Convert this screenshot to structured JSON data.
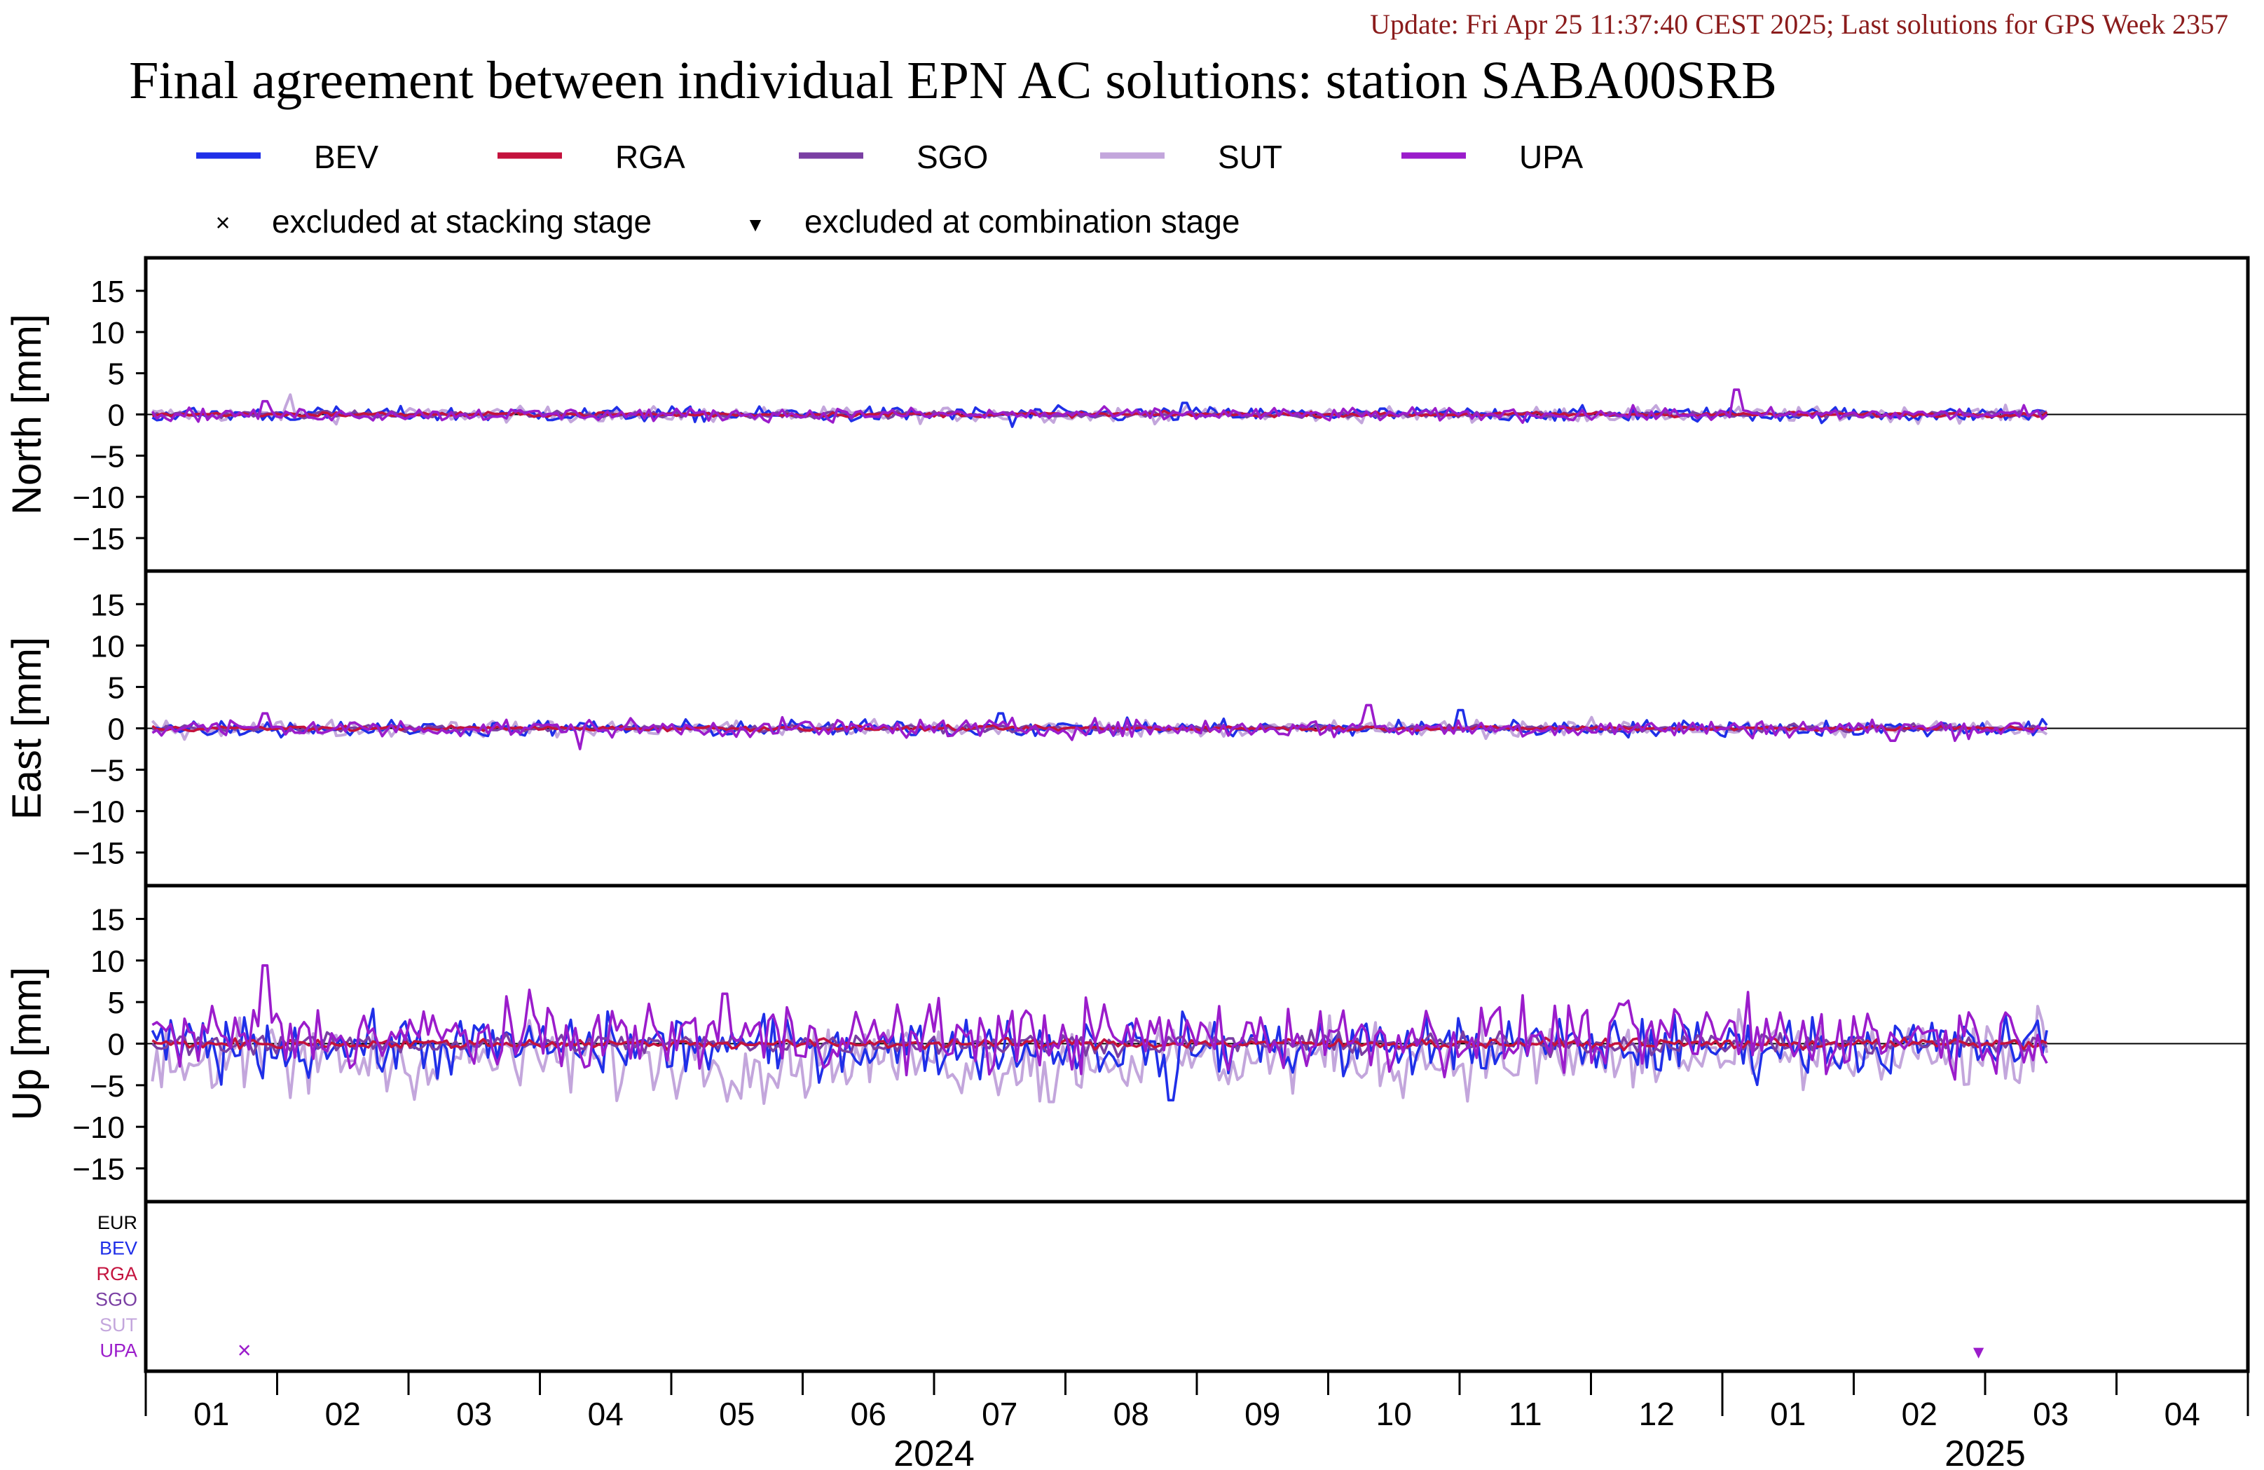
{
  "update_text": "Update: Fri Apr 25 11:37:40 CEST 2025; Last solutions for GPS Week 2357",
  "title": "Final agreement between individual EPN AC solutions: station SABA00SRB",
  "colors": {
    "BEV": "#1f2fe8",
    "RGA": "#c4123d",
    "SGO": "#7a3fa3",
    "SUT": "#c3a6dc",
    "UPA": "#9b1ccb",
    "EUR": "#000000",
    "update": "#8b1c1c"
  },
  "legend": {
    "series": [
      {
        "name": "BEV",
        "color": "#1f2fe8"
      },
      {
        "name": "RGA",
        "color": "#c4123d"
      },
      {
        "name": "SGO",
        "color": "#7a3fa3"
      },
      {
        "name": "SUT",
        "color": "#c3a6dc"
      },
      {
        "name": "UPA",
        "color": "#9b1ccb"
      }
    ],
    "markers": [
      {
        "symbol": "×",
        "label": "excluded at stacking stage"
      },
      {
        "symbol": "▼",
        "label": "excluded at combination stage"
      }
    ]
  },
  "chart_data": {
    "type": "line",
    "x_axis": {
      "unit": "month",
      "range_months_from_2024_01": [
        -0.5,
        15.5
      ],
      "month_labels": [
        "01",
        "02",
        "03",
        "04",
        "05",
        "06",
        "07",
        "08",
        "09",
        "10",
        "11",
        "12",
        "01",
        "02",
        "03",
        "04"
      ],
      "year_labels": [
        {
          "label": "2024",
          "center_month": 5.5
        },
        {
          "label": "2025",
          "center_month": 13.5
        }
      ],
      "data_end_month": 14.0
    },
    "panels": [
      {
        "ylabel": "North [mm]",
        "ylim": [
          -19,
          19
        ],
        "yticks": [
          15,
          10,
          5,
          0,
          -5,
          -10,
          -15
        ],
        "amplitude": {
          "BEV": 0.45,
          "RGA": 0.15,
          "SGO": 0.2,
          "SUT": 0.45,
          "UPA": 0.4
        },
        "spikes": [
          {
            "series": "UPA",
            "month": 0.4,
            "value": 1.6
          },
          {
            "series": "SUT",
            "month": 0.6,
            "value": 2.4
          },
          {
            "series": "BEV",
            "month": 7.4,
            "value": 1.4
          },
          {
            "series": "UPA",
            "month": 11.6,
            "value": 3.0
          },
          {
            "series": "BEV",
            "month": 6.1,
            "value": -1.5
          }
        ]
      },
      {
        "ylabel": "East [mm]",
        "ylim": [
          -19,
          19
        ],
        "yticks": [
          15,
          10,
          5,
          0,
          -5,
          -10,
          -15
        ],
        "amplitude": {
          "BEV": 0.5,
          "RGA": 0.15,
          "SGO": 0.2,
          "SUT": 0.5,
          "UPA": 0.55
        },
        "spikes": [
          {
            "series": "UPA",
            "month": 0.4,
            "value": 1.8
          },
          {
            "series": "UPA",
            "month": 2.8,
            "value": -2.5
          },
          {
            "series": "UPA",
            "month": 8.8,
            "value": 2.8
          },
          {
            "series": "BEV",
            "month": 9.5,
            "value": 2.2
          },
          {
            "series": "UPA",
            "month": 12.8,
            "value": -1.5
          },
          {
            "series": "BEV",
            "month": 6.0,
            "value": 1.8
          }
        ]
      },
      {
        "ylabel": "Up [mm]",
        "ylim": [
          -19,
          19
        ],
        "yticks": [
          15,
          10,
          5,
          0,
          -5,
          -10,
          -15
        ],
        "amplitude": {
          "BEV": 1.8,
          "RGA": 0.3,
          "SGO": 0.6,
          "SUT": 2.2,
          "UPA": 2.1
        },
        "bias": {
          "BEV": -0.3,
          "RGA": 0.0,
          "SGO": 0.0,
          "SUT": -1.8,
          "UPA": 0.9
        },
        "spikes": [
          {
            "series": "UPA",
            "month": 0.4,
            "value": 9.4
          },
          {
            "series": "SUT",
            "month": 0.6,
            "value": -6.5
          },
          {
            "series": "UPA",
            "month": 3.9,
            "value": 6.0
          },
          {
            "series": "SUT",
            "month": 4.2,
            "value": -7.2
          },
          {
            "series": "SUT",
            "month": 6.4,
            "value": -7.0
          },
          {
            "series": "BEV",
            "month": 7.3,
            "value": -6.8
          },
          {
            "series": "UPA",
            "month": 11.7,
            "value": 6.2
          },
          {
            "series": "SUT",
            "month": 13.9,
            "value": 4.5
          }
        ]
      }
    ],
    "exclusion_panel": {
      "rows": [
        "EUR",
        "BEV",
        "RGA",
        "SGO",
        "SUT",
        "UPA"
      ],
      "markers": [
        {
          "row": "UPA",
          "month": 0.25,
          "type": "stacking",
          "symbol": "×"
        },
        {
          "row": "UPA",
          "month": 13.45,
          "type": "combination",
          "symbol": "▼"
        }
      ]
    }
  }
}
